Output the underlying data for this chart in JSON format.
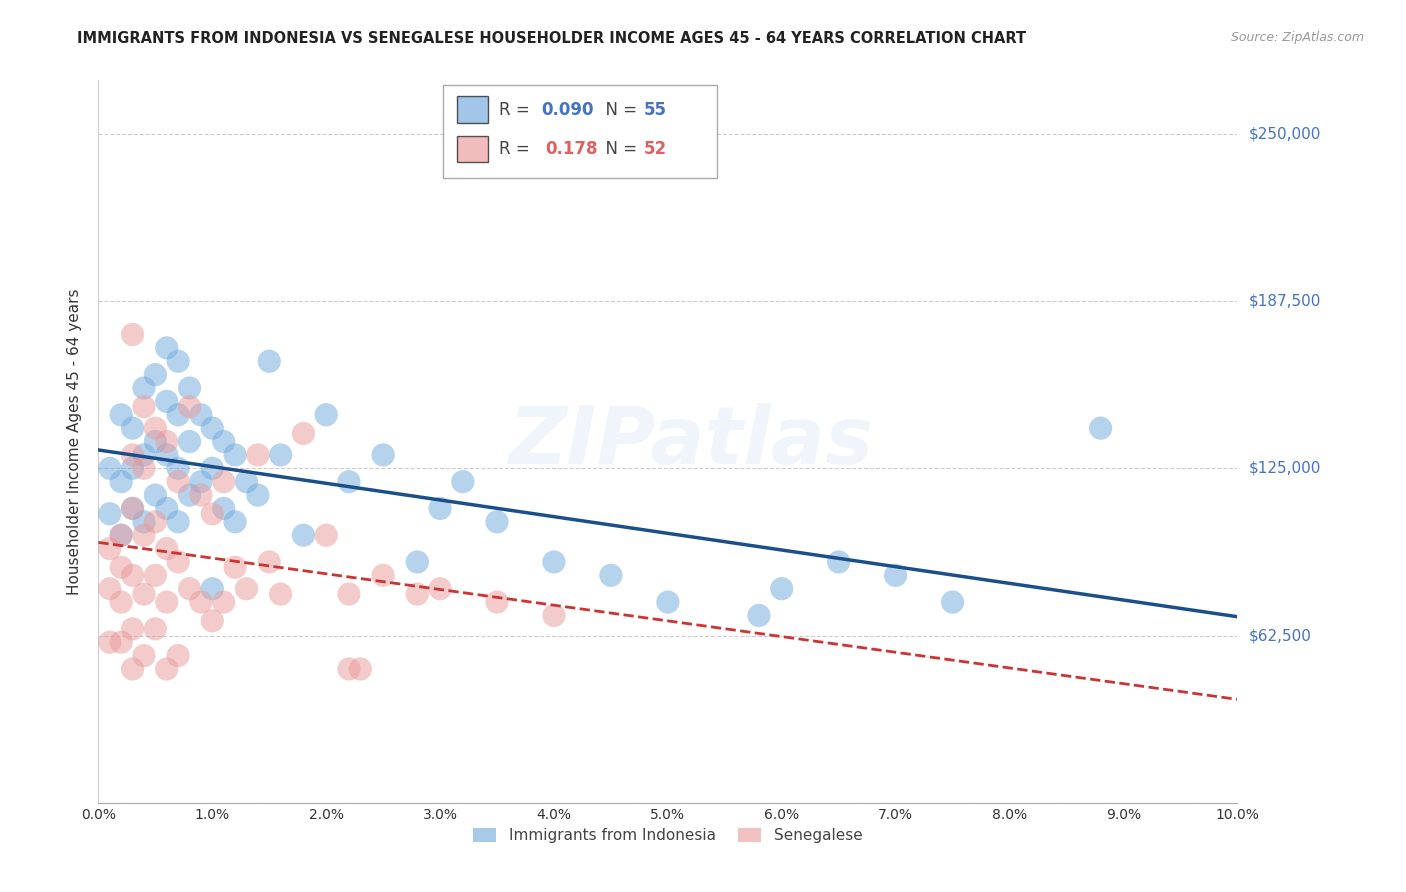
{
  "title": "IMMIGRANTS FROM INDONESIA VS SENEGALESE HOUSEHOLDER INCOME AGES 45 - 64 YEARS CORRELATION CHART",
  "source": "Source: ZipAtlas.com",
  "ylabel": "Householder Income Ages 45 - 64 years",
  "y_ticks": [
    0,
    62500,
    125000,
    187500,
    250000
  ],
  "y_tick_labels": [
    "",
    "$62,500",
    "$125,000",
    "$187,500",
    "$250,000"
  ],
  "x_range": [
    0.0,
    0.1
  ],
  "y_range": [
    0,
    270000
  ],
  "indonesia_color": "#6fa8dc",
  "senegal_color": "#ea9999",
  "indonesia_line_color": "#1a4f8a",
  "senegal_line_color": "#cc3333",
  "watermark": "ZIPatlas",
  "r_indo": "0.090",
  "n_indo": "55",
  "r_sene": "0.178",
  "n_sene": "52",
  "indo_r_color": "#4472c4",
  "indo_n_color": "#4472c4",
  "sene_r_color": "#e06060",
  "sene_n_color": "#e06060",
  "indonesia_scatter_x": [
    0.001,
    0.001,
    0.002,
    0.002,
    0.002,
    0.003,
    0.003,
    0.003,
    0.004,
    0.004,
    0.004,
    0.005,
    0.005,
    0.005,
    0.006,
    0.006,
    0.006,
    0.006,
    0.007,
    0.007,
    0.007,
    0.007,
    0.008,
    0.008,
    0.008,
    0.009,
    0.009,
    0.01,
    0.01,
    0.01,
    0.011,
    0.011,
    0.012,
    0.012,
    0.013,
    0.014,
    0.015,
    0.016,
    0.018,
    0.02,
    0.022,
    0.025,
    0.028,
    0.03,
    0.032,
    0.035,
    0.04,
    0.045,
    0.05,
    0.058,
    0.06,
    0.065,
    0.07,
    0.075,
    0.088
  ],
  "indonesia_scatter_y": [
    125000,
    108000,
    145000,
    120000,
    100000,
    140000,
    125000,
    110000,
    155000,
    130000,
    105000,
    160000,
    135000,
    115000,
    170000,
    150000,
    130000,
    110000,
    165000,
    145000,
    125000,
    105000,
    155000,
    135000,
    115000,
    145000,
    120000,
    140000,
    125000,
    80000,
    135000,
    110000,
    130000,
    105000,
    120000,
    115000,
    165000,
    130000,
    100000,
    145000,
    120000,
    130000,
    90000,
    110000,
    120000,
    105000,
    90000,
    85000,
    75000,
    70000,
    80000,
    90000,
    85000,
    75000,
    140000
  ],
  "senegal_scatter_x": [
    0.001,
    0.001,
    0.001,
    0.002,
    0.002,
    0.002,
    0.002,
    0.003,
    0.003,
    0.003,
    0.003,
    0.003,
    0.003,
    0.004,
    0.004,
    0.004,
    0.004,
    0.004,
    0.005,
    0.005,
    0.005,
    0.005,
    0.006,
    0.006,
    0.006,
    0.006,
    0.007,
    0.007,
    0.007,
    0.008,
    0.008,
    0.009,
    0.009,
    0.01,
    0.01,
    0.011,
    0.011,
    0.012,
    0.013,
    0.014,
    0.015,
    0.016,
    0.018,
    0.02,
    0.022,
    0.022,
    0.023,
    0.025,
    0.028,
    0.03,
    0.035,
    0.04
  ],
  "senegal_scatter_y": [
    95000,
    80000,
    60000,
    100000,
    88000,
    75000,
    60000,
    175000,
    130000,
    110000,
    85000,
    65000,
    50000,
    148000,
    125000,
    100000,
    78000,
    55000,
    140000,
    105000,
    85000,
    65000,
    135000,
    95000,
    75000,
    50000,
    120000,
    90000,
    55000,
    148000,
    80000,
    115000,
    75000,
    108000,
    68000,
    120000,
    75000,
    88000,
    80000,
    130000,
    90000,
    78000,
    138000,
    100000,
    78000,
    50000,
    50000,
    85000,
    78000,
    80000,
    75000,
    70000
  ]
}
